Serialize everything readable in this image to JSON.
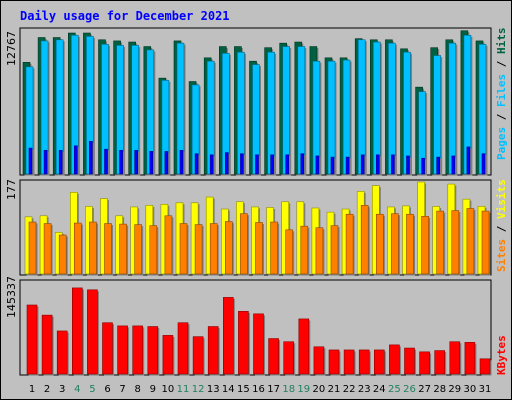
{
  "title": "Daily usage for December 2021",
  "colors": {
    "background": "#c0c0c0",
    "title": "#0000ff",
    "hits": "#006040",
    "files": "#00c0ff",
    "pages": "#0000ff",
    "visits": "#ffff00",
    "sites": "#ff8000",
    "kbytes": "#ff0000",
    "weekend_label": "#208060",
    "weekday_label": "#000000"
  },
  "chart_data": [
    {
      "type": "bar",
      "panel": "hits-files-pages",
      "ymax_label": "12767",
      "ylim": [
        0,
        12767
      ],
      "side_label": {
        "hits": "Hits",
        "files": "Files",
        "pages": "Pages",
        "sep": " / "
      },
      "categories": [
        "1",
        "2",
        "3",
        "4",
        "5",
        "6",
        "7",
        "8",
        "9",
        "10",
        "11",
        "12",
        "13",
        "14",
        "15",
        "16",
        "17",
        "18",
        "19",
        "20",
        "21",
        "22",
        "23",
        "24",
        "25",
        "26",
        "27",
        "28",
        "29",
        "30",
        "31"
      ],
      "series": [
        {
          "name": "Hits",
          "values": [
            9900,
            12100,
            12100,
            12500,
            12500,
            11900,
            11800,
            11700,
            11300,
            8500,
            11800,
            8200,
            10300,
            11300,
            11300,
            10000,
            11200,
            11600,
            11700,
            11300,
            10300,
            10300,
            12000,
            11900,
            11900,
            11100,
            7700,
            11200,
            11900,
            12700,
            11800
          ]
        },
        {
          "name": "Files",
          "values": [
            9500,
            11800,
            11900,
            12300,
            12200,
            11500,
            11400,
            11400,
            11000,
            8300,
            11600,
            7900,
            10000,
            10700,
            10800,
            9700,
            10800,
            11300,
            11300,
            10000,
            10000,
            10100,
            11900,
            11700,
            11600,
            10800,
            7300,
            10500,
            11600,
            12300,
            11500
          ]
        },
        {
          "name": "Pages",
          "values": [
            2300,
            2100,
            2100,
            2500,
            2900,
            2200,
            2100,
            2100,
            2000,
            2000,
            2100,
            1800,
            1700,
            1900,
            1800,
            1700,
            1700,
            1700,
            1800,
            1600,
            1500,
            1500,
            1700,
            1700,
            1700,
            1600,
            1400,
            1500,
            1600,
            2400,
            1800
          ]
        }
      ]
    },
    {
      "type": "bar",
      "panel": "visits-sites",
      "ymax_label": "177",
      "ylim": [
        0,
        177
      ],
      "side_label": {
        "visits": "Visits",
        "sites": "Sites",
        "sep": " / "
      },
      "series": [
        {
          "name": "Visits",
          "values": [
            110,
            112,
            80,
            157,
            130,
            145,
            112,
            129,
            132,
            134,
            137,
            137,
            148,
            125,
            139,
            129,
            128,
            139,
            139,
            127,
            119,
            125,
            159,
            170,
            129,
            131,
            177,
            130,
            173,
            144,
            130
          ]
        },
        {
          "name": "Sites",
          "values": [
            100,
            97,
            75,
            98,
            100,
            97,
            96,
            95,
            93,
            112,
            97,
            95,
            97,
            101,
            116,
            99,
            100,
            85,
            92,
            89,
            93,
            115,
            132,
            115,
            116,
            115,
            111,
            121,
            122,
            126,
            121
          ]
        }
      ]
    },
    {
      "type": "bar",
      "panel": "kbytes",
      "ymax_label": "145337",
      "ylim": [
        0,
        145337
      ],
      "side_label": {
        "kbytes": "KBytes"
      },
      "series": [
        {
          "name": "KBytes",
          "values": [
            109000,
            93000,
            68000,
            136000,
            133000,
            81000,
            76000,
            76000,
            75000,
            61000,
            81000,
            59000,
            75000,
            121000,
            99000,
            95000,
            56000,
            51000,
            87000,
            43000,
            38000,
            38000,
            38000,
            38000,
            46000,
            41000,
            35000,
            37000,
            51000,
            50000,
            24000
          ]
        }
      ]
    }
  ],
  "x_axis": {
    "labels": [
      "1",
      "2",
      "3",
      "4",
      "5",
      "6",
      "7",
      "8",
      "9",
      "10",
      "11",
      "12",
      "13",
      "14",
      "15",
      "16",
      "17",
      "18",
      "19",
      "20",
      "21",
      "22",
      "23",
      "24",
      "25",
      "26",
      "27",
      "28",
      "29",
      "30",
      "31"
    ],
    "weekend_days": [
      "4",
      "5",
      "11",
      "12",
      "18",
      "19",
      "25",
      "26"
    ]
  }
}
